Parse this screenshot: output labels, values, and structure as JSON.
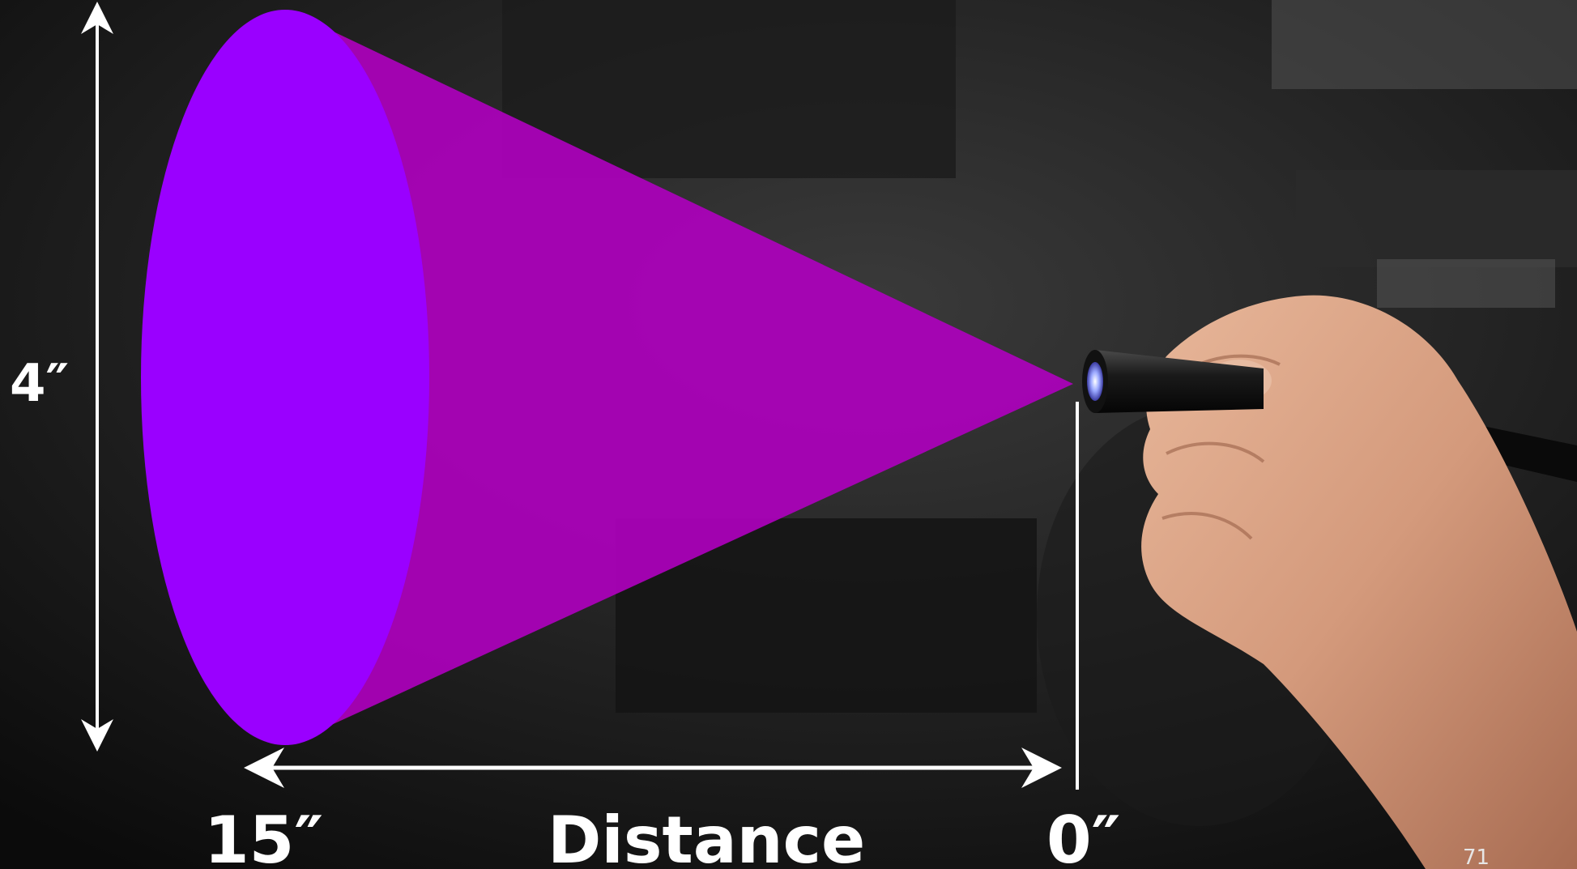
{
  "diagram": {
    "height_label": "4″",
    "far_label": "15″",
    "axis_label": "Distance",
    "near_label": "0″",
    "page_number": "71"
  },
  "colors": {
    "cone_face": "#9a00ff",
    "cone_body": "#b000c0",
    "arrow": "#ffffff"
  },
  "icons": {
    "light": "uv-flashlight-icon",
    "hand": "hand-icon"
  }
}
